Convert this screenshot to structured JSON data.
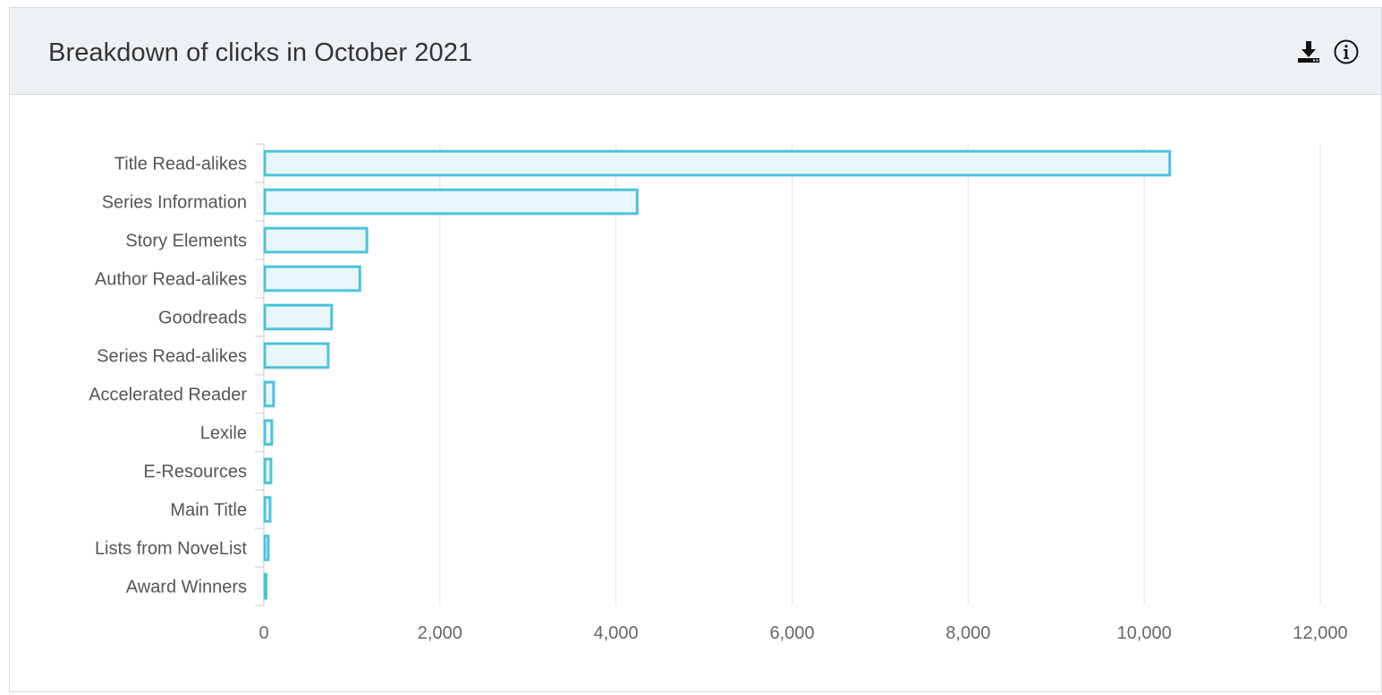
{
  "panel": {
    "title": "Breakdown of clicks in October 2021"
  },
  "header_icons": [
    "download-icon",
    "info-icon"
  ],
  "colors": {
    "bar_fill": "#e9f7fb",
    "bar_stroke": "#4bc3dc",
    "grid": "#e2e2e2",
    "header_bg": "#eef1f4"
  },
  "chart_data": {
    "type": "bar",
    "orientation": "horizontal",
    "title": "",
    "xlabel": "",
    "ylabel": "",
    "categories": [
      "Title Read-alikes",
      "Series Information",
      "Story Elements",
      "Author Read-alikes",
      "Goodreads",
      "Series Read-alikes",
      "Accelerated Reader",
      "Lexile",
      "E-Resources",
      "Main Title",
      "Lists from NoveList",
      "Award Winners"
    ],
    "values": [
      10280,
      4230,
      1160,
      1080,
      760,
      720,
      100,
      80,
      70,
      60,
      40,
      10
    ],
    "xlim": [
      0,
      12000
    ],
    "xticks": [
      0,
      2000,
      4000,
      6000,
      8000,
      10000,
      12000
    ],
    "xtick_labels": [
      "0",
      "2,000",
      "4,000",
      "6,000",
      "8,000",
      "10,000",
      "12,000"
    ],
    "grid": true,
    "legend": "none"
  }
}
